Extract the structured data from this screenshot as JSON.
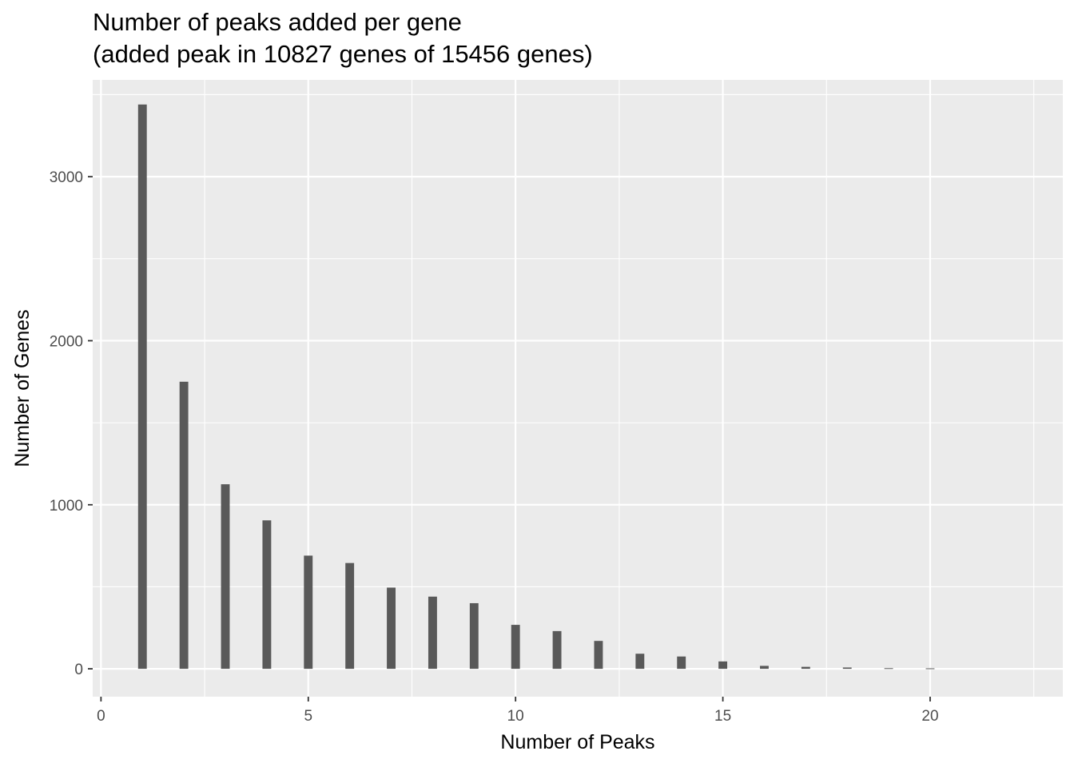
{
  "chart_data": {
    "type": "bar",
    "title_lines": [
      "Number of peaks added per gene",
      "(added peak in 10827 genes of 15456 genes)"
    ],
    "xlabel": "Number of Peaks",
    "ylabel": "Number of Genes",
    "x": [
      1,
      2,
      3,
      4,
      5,
      6,
      7,
      8,
      9,
      10,
      11,
      12,
      13,
      14,
      15,
      16,
      17,
      18,
      19,
      20
    ],
    "values": [
      3440,
      1750,
      1125,
      905,
      690,
      645,
      495,
      440,
      400,
      268,
      230,
      170,
      92,
      75,
      45,
      18,
      12,
      8,
      4,
      3
    ],
    "xlim": [
      -0.2,
      23.2
    ],
    "ylim": [
      -170,
      3590
    ],
    "x_ticks": [
      0,
      5,
      10,
      15,
      20
    ],
    "x_tick_labels": [
      "0",
      "5",
      "10",
      "15",
      "20"
    ],
    "x_minor_ticks": [
      2.5,
      7.5,
      12.5,
      17.5,
      22.5
    ],
    "y_ticks": [
      0,
      1000,
      2000,
      3000
    ],
    "y_tick_labels": [
      "0",
      "1000",
      "2000",
      "3000"
    ],
    "y_minor_ticks": [
      500,
      1500,
      2500,
      3500
    ],
    "grid": true,
    "bar_color": "#595959",
    "panel_background": "#ebebeb",
    "gridline_color": "#ffffff"
  }
}
